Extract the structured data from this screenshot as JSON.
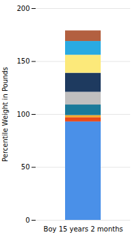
{
  "chart_data": {
    "type": "bar",
    "stacked": true,
    "categories": [
      "Boy 15 years 2 months"
    ],
    "series": [
      {
        "color": "#4a90e8",
        "values": [
          93
        ]
      },
      {
        "color": "#e84a1a",
        "values": [
          4
        ]
      },
      {
        "color": "#f5a623",
        "values": [
          2
        ]
      },
      {
        "color": "#1a7a9a",
        "values": [
          10
        ]
      },
      {
        "color": "#c0bfbf",
        "values": [
          12
        ]
      },
      {
        "color": "#1e3a5f",
        "values": [
          18
        ]
      },
      {
        "color": "#fce97a",
        "values": [
          17
        ]
      },
      {
        "color": "#29aae2",
        "values": [
          13
        ]
      },
      {
        "color": "#b36040",
        "values": [
          10
        ]
      }
    ],
    "ylabel": "Percentile Weight in Pounds",
    "ylim": [
      0,
      200
    ],
    "yticks": [
      0,
      50,
      100,
      150,
      200
    ],
    "grid": true
  }
}
